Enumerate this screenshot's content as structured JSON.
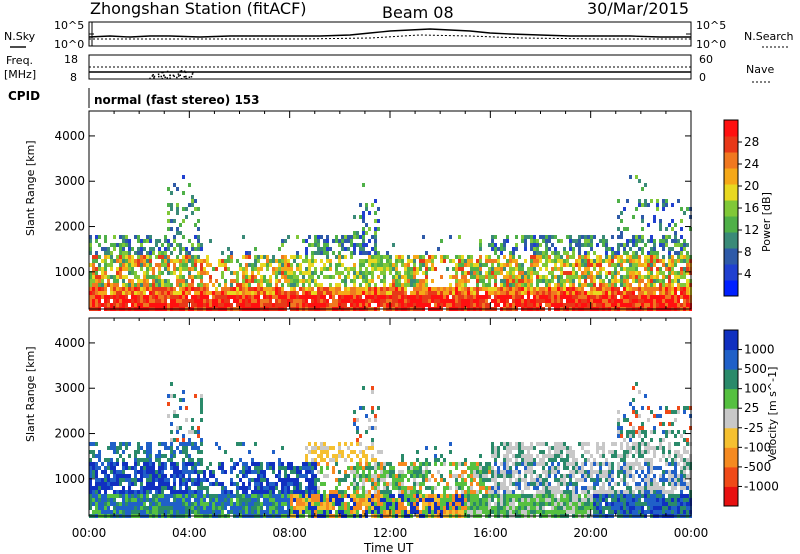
{
  "header": {
    "station": "Zhongshan Station (fitACF)",
    "beam": "Beam 08",
    "date": "30/Mar/2015"
  },
  "strip_labels": {
    "nsky": "N.Sky",
    "nsearch": "N.Search",
    "freq": "Freq.",
    "mhz": "[MHz]",
    "cpid": "CPID",
    "nave": "Nave",
    "cpid_text": "normal (fast stereo) 153"
  },
  "strip_ticks": {
    "noise_left_top": "10^5",
    "noise_left_bottom": "10^0",
    "noise_right_top": "10^5",
    "noise_right_bottom": "10^0",
    "freq_left_top": "18",
    "freq_left_bottom": "8",
    "nave_right_top": "60",
    "nave_right_bottom": "0"
  },
  "chart_data": [
    {
      "type": "heatmap",
      "name": "power",
      "ylabel": "Slant Range [km]",
      "colorbar_label": "Power [dB]",
      "x_ticks": [
        "00:00",
        "04:00",
        "08:00",
        "12:00",
        "16:00",
        "20:00",
        "00:00"
      ],
      "y_ticks": [
        "1000",
        "2000",
        "3000",
        "4000"
      ],
      "ylim": [
        180,
        4550
      ],
      "xlim_hours": [
        0,
        24
      ],
      "colorbar_ticks": [
        "4",
        "8",
        "12",
        "16",
        "20",
        "24",
        "28"
      ],
      "colorbar_range": [
        0,
        32
      ],
      "colors": [
        "#0020ff",
        "#2040d0",
        "#2e5aa8",
        "#3a8a78",
        "#4fb048",
        "#80c838",
        "#e8d820",
        "#f5a818",
        "#f07820",
        "#e83818",
        "#ff1010"
      ]
    },
    {
      "type": "heatmap",
      "name": "velocity",
      "ylabel": "Slant Range [km]",
      "xlabel": "Time UT",
      "colorbar_label": "Velocity [m s^-1]",
      "x_ticks": [
        "00:00",
        "04:00",
        "08:00",
        "12:00",
        "16:00",
        "20:00",
        "00:00"
      ],
      "y_ticks": [
        "1000",
        "2000",
        "3000",
        "4000"
      ],
      "ylim": [
        180,
        4550
      ],
      "xlim_hours": [
        0,
        24
      ],
      "colorbar_ticks": [
        "1000",
        "500",
        "100",
        "25",
        "-25",
        "-100",
        "-500",
        "-1000"
      ],
      "colors": [
        "#1030c0",
        "#2060c8",
        "#2a8a6a",
        "#55c040",
        "#c8c8c8",
        "#f5c030",
        "#f58a20",
        "#f04a18",
        "#e81010"
      ]
    }
  ]
}
